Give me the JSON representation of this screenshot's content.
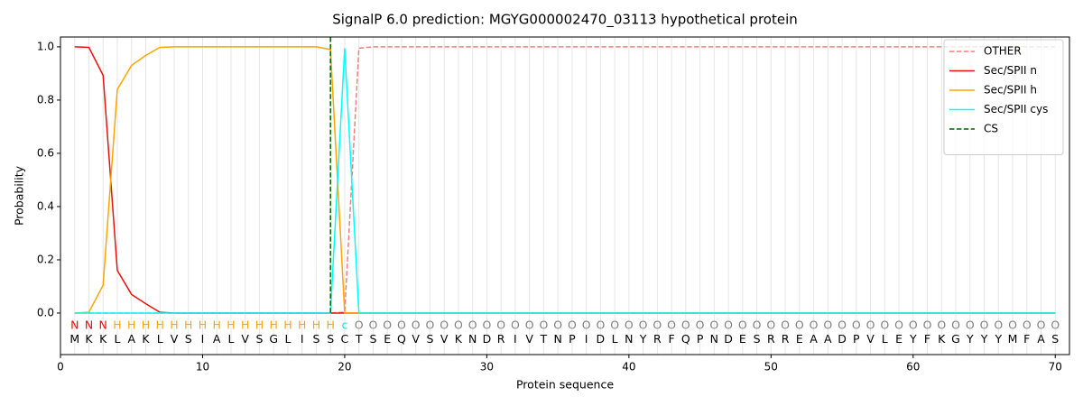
{
  "chart_data": {
    "type": "line",
    "title": "SignalP 6.0 prediction: MGYG000002470_03113 hypothetical protein",
    "x_label": "Protein sequence",
    "y_label": "Probability",
    "xlim": [
      0,
      71
    ],
    "ylim": [
      -0.156,
      1.037
    ],
    "xticks": [
      0,
      10,
      20,
      30,
      40,
      50,
      60,
      70
    ],
    "yticks": [
      {
        "value": 0,
        "label": "0.0"
      },
      {
        "value": 0.2,
        "label": "0.2"
      },
      {
        "value": 0.4,
        "label": "0.4"
      },
      {
        "value": 0.6,
        "label": "0.6"
      },
      {
        "value": 0.8,
        "label": "0.8"
      },
      {
        "value": 1,
        "label": "1.0"
      }
    ],
    "x": [
      1,
      2,
      3,
      4,
      5,
      6,
      7,
      8,
      9,
      10,
      11,
      12,
      13,
      14,
      15,
      16,
      17,
      18,
      19,
      20,
      21,
      22,
      23,
      24,
      25,
      26,
      27,
      28,
      29,
      30,
      31,
      32,
      33,
      34,
      35,
      36,
      37,
      38,
      39,
      40,
      41,
      42,
      43,
      44,
      45,
      46,
      47,
      48,
      49,
      50,
      51,
      52,
      53,
      54,
      55,
      56,
      57,
      58,
      59,
      60,
      61,
      62,
      63,
      64,
      65,
      66,
      67,
      68,
      69,
      70
    ],
    "sequence": [
      "M",
      "K",
      "K",
      "L",
      "A",
      "K",
      "L",
      "V",
      "S",
      "I",
      "A",
      "L",
      "V",
      "S",
      "G",
      "L",
      "I",
      "S",
      "S",
      "C",
      "T",
      "S",
      "E",
      "Q",
      "V",
      "S",
      "V",
      "K",
      "N",
      "D",
      "R",
      "I",
      "V",
      "T",
      "N",
      "P",
      "I",
      "D",
      "L",
      "N",
      "Y",
      "R",
      "F",
      "Q",
      "P",
      "N",
      "D",
      "E",
      "S",
      "R",
      "R",
      "E",
      "A",
      "A",
      "D",
      "P",
      "V",
      "L",
      "E",
      "Y",
      "F",
      "K",
      "G",
      "Y",
      "Y",
      "Y",
      "M",
      "F",
      "A",
      "S"
    ],
    "region_labels": [
      "N",
      "N",
      "N",
      "H",
      "H",
      "H",
      "H",
      "H",
      "H",
      "H",
      "H",
      "H",
      "H",
      "H",
      "H",
      "H",
      "H",
      "H",
      "H",
      "c",
      "O",
      "O",
      "O",
      "O",
      "O",
      "O",
      "O",
      "O",
      "O",
      "O",
      "O",
      "O",
      "O",
      "O",
      "O",
      "O",
      "O",
      "O",
      "O",
      "O",
      "O",
      "O",
      "O",
      "O",
      "O",
      "O",
      "O",
      "O",
      "O",
      "O",
      "O",
      "O",
      "O",
      "O",
      "O",
      "O",
      "O",
      "O",
      "O",
      "O",
      "O",
      "O",
      "O",
      "O",
      "O",
      "O",
      "O",
      "O",
      "O",
      "O"
    ],
    "region_colors": {
      "N": "#ff0000",
      "H": "#ffa500",
      "c": "#00e5ee",
      "O": "#808080"
    },
    "series": [
      {
        "name": "OTHER",
        "color": "#f08080",
        "dashed": true,
        "values": [
          0,
          0,
          0,
          0,
          0,
          0,
          0,
          0,
          0,
          0,
          0,
          0,
          0,
          0,
          0,
          0,
          0,
          0,
          0,
          0.003,
          0.995,
          1,
          1,
          1,
          1,
          1,
          1,
          1,
          1,
          1,
          1,
          1,
          1,
          1,
          1,
          1,
          1,
          1,
          1,
          1,
          1,
          1,
          1,
          1,
          1,
          1,
          1,
          1,
          1,
          1,
          1,
          1,
          1,
          1,
          1,
          1,
          1,
          1,
          1,
          1,
          1,
          1,
          1,
          1,
          1,
          1,
          1,
          1,
          1,
          1
        ]
      },
      {
        "name": "Sec/SPII n",
        "color": "#e8120c",
        "dashed": false,
        "values": [
          1,
          0.998,
          0.893,
          0.16,
          0.07,
          0.035,
          0.003,
          0,
          0,
          0,
          0,
          0,
          0,
          0,
          0,
          0,
          0,
          0,
          0,
          0,
          0,
          0,
          0,
          0,
          0,
          0,
          0,
          0,
          0,
          0,
          0,
          0,
          0,
          0,
          0,
          0,
          0,
          0,
          0,
          0,
          0,
          0,
          0,
          0,
          0,
          0,
          0,
          0,
          0,
          0,
          0,
          0,
          0,
          0,
          0,
          0,
          0,
          0,
          0,
          0,
          0,
          0,
          0,
          0,
          0,
          0,
          0,
          0,
          0,
          0
        ]
      },
      {
        "name": "Sec/SPII h",
        "color": "#ffa500",
        "dashed": false,
        "values": [
          0,
          0.003,
          0.105,
          0.84,
          0.93,
          0.968,
          0.998,
          1,
          1,
          1,
          1,
          1,
          1,
          1,
          1,
          1,
          1,
          1,
          0.99,
          0,
          0,
          0,
          0,
          0,
          0,
          0,
          0,
          0,
          0,
          0,
          0,
          0,
          0,
          0,
          0,
          0,
          0,
          0,
          0,
          0,
          0,
          0,
          0,
          0,
          0,
          0,
          0,
          0,
          0,
          0,
          0,
          0,
          0,
          0,
          0,
          0,
          0,
          0,
          0,
          0,
          0,
          0,
          0,
          0,
          0,
          0,
          0,
          0,
          0,
          0
        ]
      },
      {
        "name": "Sec/SPII cys",
        "color": "#00ffff",
        "dashed": false,
        "values": [
          0,
          0,
          0,
          0,
          0,
          0,
          0,
          0,
          0,
          0,
          0,
          0,
          0,
          0,
          0,
          0,
          0,
          0,
          0,
          0.995,
          0,
          0,
          0,
          0,
          0,
          0,
          0,
          0,
          0,
          0,
          0,
          0,
          0,
          0,
          0,
          0,
          0,
          0,
          0,
          0,
          0,
          0,
          0,
          0,
          0,
          0,
          0,
          0,
          0,
          0,
          0,
          0,
          0,
          0,
          0,
          0,
          0,
          0,
          0,
          0,
          0,
          0,
          0,
          0,
          0,
          0,
          0,
          0,
          0,
          0
        ]
      }
    ],
    "markers": [
      {
        "name": "CS",
        "color": "#006400",
        "x": 19
      }
    ],
    "residue_grid": true,
    "legend": "upper right"
  }
}
